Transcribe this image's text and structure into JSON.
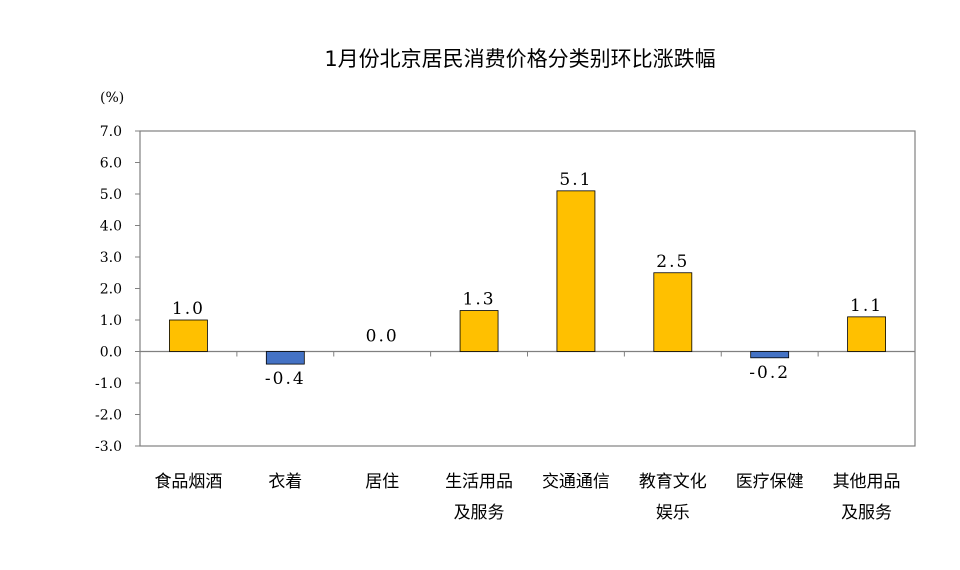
{
  "chart_data": {
    "type": "bar",
    "title": "1月份北京居民消费价格分类别环比涨跌幅",
    "unit_label": "(%)",
    "ylim": [
      -3.0,
      7.0
    ],
    "ytick_step": 1.0,
    "yticks": [
      "7.0",
      "6.0",
      "5.0",
      "4.0",
      "3.0",
      "2.0",
      "1.0",
      "0.0",
      "-1.0",
      "-2.0",
      "-3.0"
    ],
    "categories": [
      [
        "食品烟酒"
      ],
      [
        "衣着"
      ],
      [
        "居住"
      ],
      [
        "生活用品",
        "及服务"
      ],
      [
        "交通通信"
      ],
      [
        "教育文化",
        "娱乐"
      ],
      [
        "医疗保健"
      ],
      [
        "其他用品",
        "及服务"
      ]
    ],
    "values": [
      1.0,
      -0.4,
      0.0,
      1.3,
      5.1,
      2.5,
      -0.2,
      1.1
    ],
    "data_labels": [
      "1.0",
      "-0.4",
      "0.0",
      "1.3",
      "5.1",
      "2.5",
      "-0.2",
      "1.1"
    ],
    "positive_color": "#FFC000",
    "negative_color": "#4472C4",
    "grid": false,
    "legend": "none"
  }
}
